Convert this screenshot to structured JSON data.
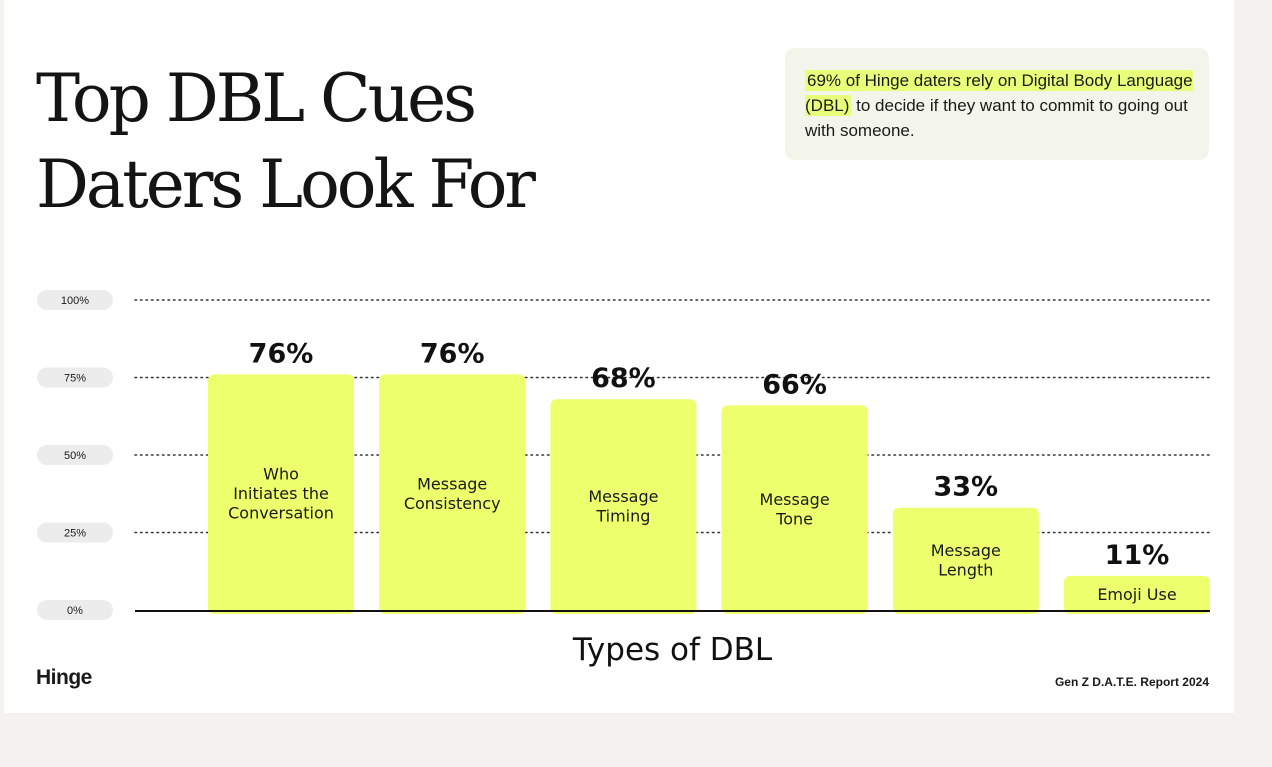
{
  "title": "Top DBL Cues\nDaters Look For",
  "callout": {
    "highlight": "69% of Hinge daters rely on Digital Body Language (DBL)",
    "rest": " to decide if they want to commit to going out with someone."
  },
  "brand": "Hinge",
  "source": "Gen Z D.A.T.E. Report 2024",
  "colors": {
    "bar": "#eeff6e",
    "highlight": "#e9ff7a",
    "text": "#1a1a1a",
    "tick_pill": "#ececec"
  },
  "chart_data": {
    "type": "bar",
    "xlabel": "Types of DBL",
    "ylabel": "",
    "ylim": [
      0,
      100
    ],
    "yticks": [
      0,
      25,
      50,
      75,
      100
    ],
    "ytick_labels": [
      "0%",
      "25%",
      "50%",
      "75%",
      "100%"
    ],
    "grid": "horizontal dotted",
    "categories": [
      "Who\nInitiates the\nConversation",
      "Message\nConsistency",
      "Message\nTiming",
      "Message\nTone",
      "Message\nLength",
      "Emoji Use"
    ],
    "values": [
      76,
      76,
      68,
      66,
      33,
      11
    ],
    "data_labels": [
      "76%",
      "76%",
      "68%",
      "66%",
      "33%",
      "11%"
    ]
  }
}
